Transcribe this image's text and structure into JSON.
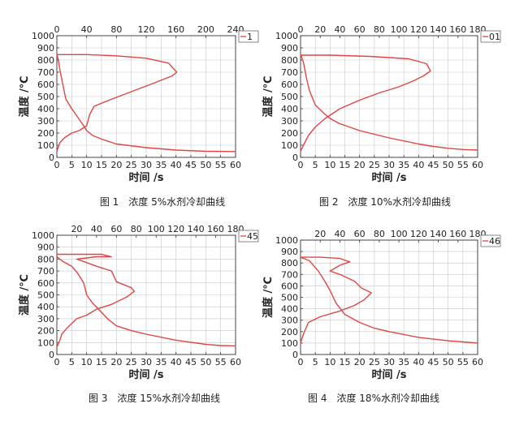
{
  "chart_data": [
    {
      "type": "line",
      "title": "图 1　浓度 5%水剂冷却曲线",
      "xlabel": "时间 /s",
      "ylabel": "温度 /℃",
      "xlim": [
        0,
        60
      ],
      "ylim": [
        0,
        1000
      ],
      "x_ticks": [
        0,
        5,
        10,
        15,
        20,
        25,
        30,
        35,
        40,
        45,
        50,
        55,
        60
      ],
      "y_ticks": [
        0,
        100,
        200,
        300,
        400,
        500,
        600,
        700,
        800,
        900,
        1000
      ],
      "top_axis": {
        "lim": [
          0,
          240
        ],
        "ticks": [
          0,
          40,
          80,
          120,
          160,
          200,
          240
        ]
      },
      "legend": {
        "label": "1",
        "position": "top-right"
      },
      "grid": true,
      "color": "#e04545",
      "series": [
        {
          "axis": "bottom",
          "points": [
            [
              0,
              850
            ],
            [
              0.5,
              800
            ],
            [
              1,
              720
            ],
            [
              2,
              600
            ],
            [
              3,
              480
            ],
            [
              5,
              400
            ],
            [
              7,
              330
            ],
            [
              9,
              260
            ],
            [
              10,
              220
            ],
            [
              12,
              180
            ],
            [
              15,
              150
            ],
            [
              20,
              110
            ],
            [
              30,
              80
            ],
            [
              40,
              60
            ],
            [
              50,
              50
            ],
            [
              60,
              48
            ]
          ]
        },
        {
          "axis": "top",
          "points": [
            [
              0,
              50
            ],
            [
              4,
              120
            ],
            [
              10,
              160
            ],
            [
              20,
              200
            ],
            [
              30,
              220
            ],
            [
              40,
              260
            ],
            [
              44,
              350
            ],
            [
              50,
              420
            ],
            [
              70,
              470
            ],
            [
              100,
              540
            ],
            [
              130,
              610
            ],
            [
              155,
              670
            ],
            [
              161,
              700
            ],
            [
              150,
              775
            ],
            [
              120,
              815
            ],
            [
              80,
              835
            ],
            [
              40,
              845
            ],
            [
              0,
              845
            ]
          ]
        }
      ]
    },
    {
      "type": "line",
      "title": "图 2　浓度 10%水剂冷却曲线",
      "xlabel": "时间 /s",
      "ylabel": "温度 /℃",
      "xlim": [
        0,
        60
      ],
      "ylim": [
        0,
        1000
      ],
      "x_ticks": [
        0,
        5,
        10,
        15,
        20,
        25,
        30,
        35,
        40,
        45,
        50,
        55,
        60
      ],
      "y_ticks": [
        0,
        100,
        200,
        300,
        400,
        500,
        600,
        700,
        800,
        900,
        1000
      ],
      "top_axis": {
        "lim": [
          0,
          180
        ],
        "ticks": [
          0,
          20,
          40,
          60,
          80,
          100,
          120,
          140,
          160,
          180
        ]
      },
      "legend": {
        "label": "01",
        "position": "top-right"
      },
      "grid": true,
      "color": "#e04545",
      "series": [
        {
          "axis": "bottom",
          "points": [
            [
              0,
              850
            ],
            [
              1,
              780
            ],
            [
              2,
              650
            ],
            [
              3,
              550
            ],
            [
              5,
              430
            ],
            [
              8,
              360
            ],
            [
              10,
              320
            ],
            [
              13,
              280
            ],
            [
              20,
              220
            ],
            [
              30,
              160
            ],
            [
              40,
              110
            ],
            [
              45,
              90
            ],
            [
              50,
              75
            ],
            [
              55,
              65
            ],
            [
              60,
              60
            ]
          ]
        },
        {
          "axis": "top",
          "points": [
            [
              0,
              50
            ],
            [
              3,
              100
            ],
            [
              8,
              180
            ],
            [
              15,
              250
            ],
            [
              25,
              320
            ],
            [
              40,
              400
            ],
            [
              60,
              470
            ],
            [
              80,
              530
            ],
            [
              100,
              580
            ],
            [
              115,
              630
            ],
            [
              125,
              670
            ],
            [
              132,
              710
            ],
            [
              128,
              770
            ],
            [
              110,
              810
            ],
            [
              70,
              830
            ],
            [
              30,
              840
            ],
            [
              0,
              840
            ]
          ]
        }
      ]
    },
    {
      "type": "line",
      "title": "图 3　浓度 15%水剂冷却曲线",
      "xlabel": "时间 /s",
      "ylabel": "温度 /℃",
      "xlim": [
        0,
        60
      ],
      "ylim": [
        0,
        1000
      ],
      "x_ticks": [
        0,
        5,
        10,
        15,
        20,
        25,
        30,
        35,
        40,
        45,
        50,
        55,
        60
      ],
      "y_ticks": [
        0,
        100,
        200,
        300,
        400,
        500,
        600,
        700,
        800,
        900,
        1000
      ],
      "top_axis": {
        "lim": [
          0,
          180
        ],
        "ticks": [
          20,
          40,
          60,
          80,
          100,
          120,
          140,
          160,
          180
        ]
      },
      "legend": {
        "label": "45",
        "position": "top-right"
      },
      "grid": true,
      "color": "#e04545",
      "series": [
        {
          "axis": "bottom",
          "points": [
            [
              0,
              820
            ],
            [
              2,
              780
            ],
            [
              5,
              740
            ],
            [
              7,
              680
            ],
            [
              9,
              600
            ],
            [
              10,
              500
            ],
            [
              12,
              430
            ],
            [
              14,
              380
            ],
            [
              17,
              300
            ],
            [
              20,
              240
            ],
            [
              25,
              200
            ],
            [
              30,
              170
            ],
            [
              40,
              120
            ],
            [
              50,
              85
            ],
            [
              55,
              75
            ],
            [
              60,
              72
            ]
          ]
        },
        {
          "axis": "top",
          "points": [
            [
              0,
              60
            ],
            [
              3,
              120
            ],
            [
              5,
              170
            ],
            [
              10,
              220
            ],
            [
              20,
              300
            ],
            [
              30,
              330
            ],
            [
              40,
              380
            ],
            [
              55,
              420
            ],
            [
              70,
              480
            ],
            [
              78,
              530
            ],
            [
              75,
              560
            ],
            [
              60,
              610
            ],
            [
              55,
              700
            ],
            [
              40,
              740
            ],
            [
              30,
              770
            ],
            [
              20,
              800
            ],
            [
              40,
              820
            ],
            [
              55,
              820
            ],
            [
              45,
              840
            ],
            [
              20,
              840
            ],
            [
              0,
              840
            ]
          ]
        }
      ]
    },
    {
      "type": "line",
      "title": "图 4　浓度 18%水剂冷却曲线",
      "xlabel": "时间 /s",
      "ylabel": "温度 /℃",
      "xlim": [
        0,
        60
      ],
      "ylim": [
        0,
        1000
      ],
      "x_ticks": [
        0,
        5,
        10,
        15,
        20,
        25,
        30,
        35,
        40,
        45,
        50,
        55,
        60
      ],
      "y_ticks": [
        0,
        100,
        200,
        300,
        400,
        500,
        600,
        700,
        800,
        900,
        1000
      ],
      "top_axis": {
        "lim": [
          0,
          180
        ],
        "ticks": [
          20,
          40,
          60,
          80,
          100,
          120,
          140,
          160,
          180
        ]
      },
      "legend": {
        "label": "46",
        "position": "top-right"
      },
      "grid": true,
      "color": "#e04545",
      "series": [
        {
          "axis": "bottom",
          "points": [
            [
              0,
              850
            ],
            [
              3,
              820
            ],
            [
              6,
              730
            ],
            [
              8,
              650
            ],
            [
              10,
              560
            ],
            [
              12,
              450
            ],
            [
              15,
              350
            ],
            [
              20,
              280
            ],
            [
              25,
              230
            ],
            [
              30,
              200
            ],
            [
              40,
              150
            ],
            [
              50,
              120
            ],
            [
              55,
              110
            ],
            [
              60,
              100
            ]
          ]
        },
        {
          "axis": "top",
          "points": [
            [
              0,
              100
            ],
            [
              3,
              180
            ],
            [
              8,
              280
            ],
            [
              20,
              330
            ],
            [
              40,
              380
            ],
            [
              55,
              430
            ],
            [
              65,
              480
            ],
            [
              72,
              540
            ],
            [
              62,
              580
            ],
            [
              55,
              640
            ],
            [
              40,
              700
            ],
            [
              30,
              730
            ],
            [
              40,
              780
            ],
            [
              50,
              810
            ],
            [
              40,
              840
            ],
            [
              20,
              850
            ],
            [
              0,
              850
            ]
          ]
        }
      ]
    }
  ]
}
